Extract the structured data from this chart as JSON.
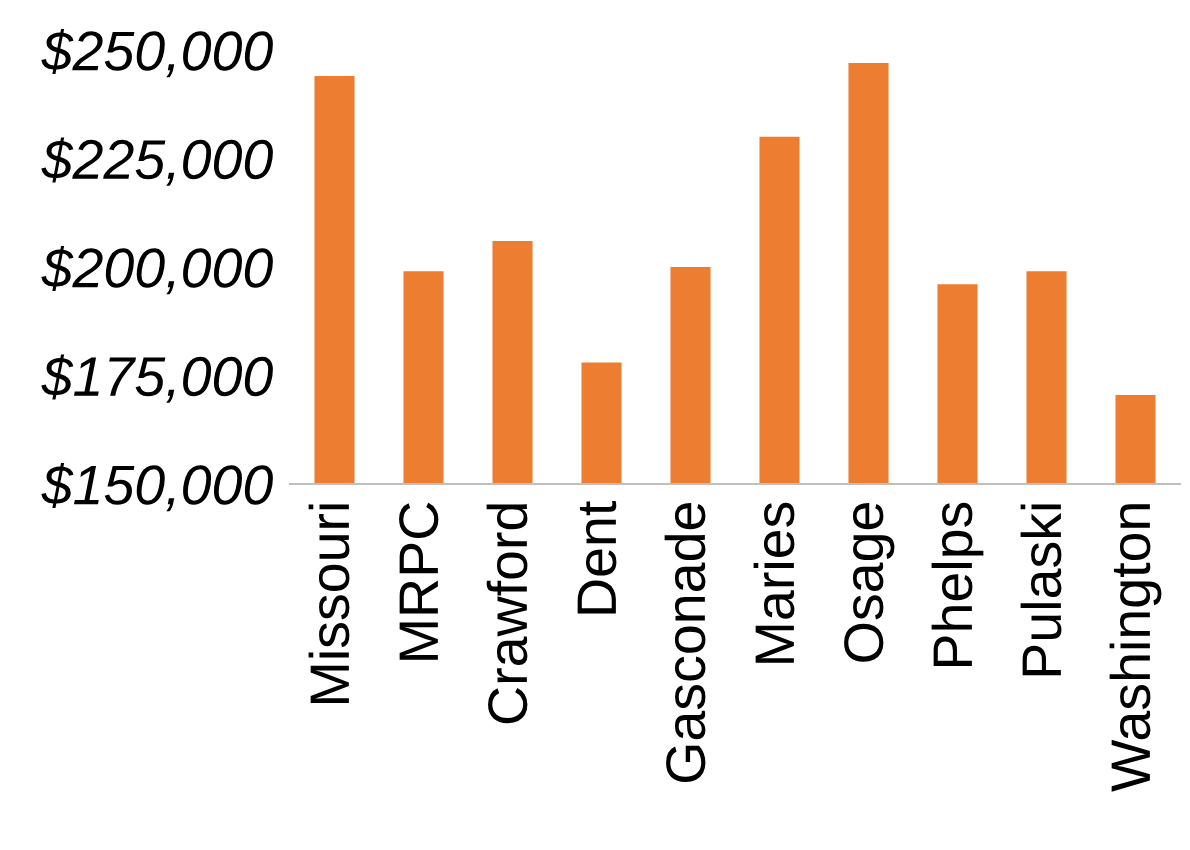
{
  "chart_data": {
    "type": "bar",
    "categories": [
      "Missouri",
      "MRPC",
      "Crawford",
      "Dent",
      "Gasconade",
      "Maries",
      "Osage",
      "Phelps",
      "Pulaski",
      "Washington"
    ],
    "values": [
      244000,
      199000,
      206000,
      178000,
      200000,
      230000,
      247000,
      196000,
      199000,
      170500
    ],
    "color": "#ed7d31",
    "ylim": [
      150000,
      250000
    ],
    "yticks": [
      {
        "value": 150000,
        "label": "$150,000"
      },
      {
        "value": 175000,
        "label": "$175,000"
      },
      {
        "value": 200000,
        "label": "$200,000"
      },
      {
        "value": 225000,
        "label": "$225,000"
      },
      {
        "value": 250000,
        "label": "$250,000"
      }
    ],
    "grid": false
  }
}
